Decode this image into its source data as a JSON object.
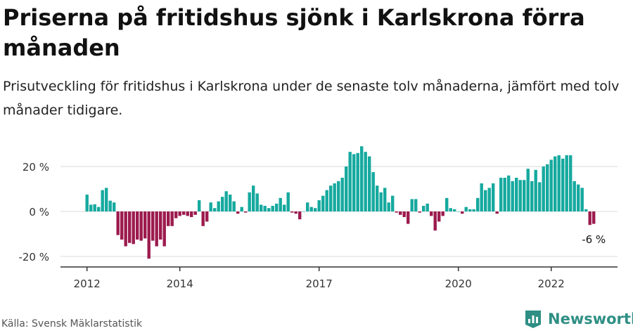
{
  "title": "Priserna på fritidshus sjönk i Karlskrona förra månaden",
  "subtitle": "Prisutveckling för fritidshus i Karlskrona under de senaste tolv månaderna, jämfört med tolv månader tidigare.",
  "source": "Källa: Svensk Mäklarstatistik",
  "brand": {
    "name": "Newsworthy",
    "icon": "newsworthy-logo-icon"
  },
  "colors": {
    "positive": "#16a99f",
    "negative": "#9c1b4e",
    "grid": "#d9d9d9",
    "axis": "#333333"
  },
  "chart_data": {
    "type": "bar",
    "unit": "%",
    "x_ticks": [
      "2012",
      "2014",
      "2017",
      "2020",
      "2022"
    ],
    "y_ticks": [
      "20 %",
      "0 %",
      "-20 %"
    ],
    "ylim": [
      -22,
      30
    ],
    "grid": true,
    "annotation": "-6 %",
    "categories": [
      "2012-01",
      "2012-02",
      "2012-03",
      "2012-04",
      "2012-05",
      "2012-06",
      "2012-07",
      "2012-08",
      "2012-09",
      "2012-10",
      "2012-11",
      "2012-12",
      "2013-01",
      "2013-02",
      "2013-03",
      "2013-04",
      "2013-05",
      "2013-06",
      "2013-07",
      "2013-08",
      "2013-09",
      "2013-10",
      "2013-11",
      "2013-12",
      "2014-01",
      "2014-02",
      "2014-03",
      "2014-04",
      "2014-05",
      "2014-06",
      "2014-07",
      "2014-08",
      "2014-09",
      "2014-10",
      "2014-11",
      "2014-12",
      "2015-01",
      "2015-02",
      "2015-03",
      "2015-04",
      "2015-05",
      "2015-06",
      "2015-07",
      "2015-08",
      "2015-09",
      "2015-10",
      "2015-11",
      "2015-12",
      "2016-01",
      "2016-02",
      "2016-03",
      "2016-04",
      "2016-05",
      "2016-06",
      "2016-07",
      "2016-08",
      "2016-09",
      "2016-10",
      "2016-11",
      "2016-12",
      "2017-01",
      "2017-02",
      "2017-03",
      "2017-04",
      "2017-05",
      "2017-06",
      "2017-07",
      "2017-08",
      "2017-09",
      "2017-10",
      "2017-11",
      "2017-12",
      "2018-01",
      "2018-02",
      "2018-03",
      "2018-04",
      "2018-05",
      "2018-06",
      "2018-07",
      "2018-08",
      "2018-09",
      "2018-10",
      "2018-11",
      "2018-12",
      "2019-01",
      "2019-02",
      "2019-03",
      "2019-04",
      "2019-05",
      "2019-06",
      "2019-07",
      "2019-08",
      "2019-09",
      "2019-10",
      "2019-11",
      "2019-12",
      "2020-01",
      "2020-02",
      "2020-03",
      "2020-04",
      "2020-05",
      "2020-06",
      "2020-07",
      "2020-08",
      "2020-09",
      "2020-10",
      "2020-11",
      "2020-12",
      "2021-01",
      "2021-02",
      "2021-03",
      "2021-04",
      "2021-05",
      "2021-06",
      "2021-07",
      "2021-08",
      "2021-09",
      "2021-10",
      "2021-11",
      "2021-12",
      "2022-01",
      "2022-02",
      "2022-03",
      "2022-04",
      "2022-05",
      "2022-06",
      "2022-07",
      "2022-08",
      "2022-09",
      "2022-10",
      "2022-11",
      "2022-12"
    ],
    "values": [
      7.5,
      3,
      3.2,
      2,
      9.5,
      10.5,
      4.8,
      4,
      -10.5,
      -12.5,
      -15.5,
      -14,
      -14.5,
      -12.5,
      -13,
      -12,
      -21,
      -13,
      -15.5,
      -12.5,
      -15.5,
      -6.5,
      -6.5,
      -3,
      -2,
      -1.5,
      -2,
      -2.5,
      -1.5,
      5,
      -6.5,
      -4.5,
      4,
      1.5,
      4.5,
      6.5,
      9,
      7.5,
      4.5,
      -1,
      2,
      -0.5,
      8.5,
      11.5,
      8,
      3,
      2.5,
      1.5,
      2.5,
      3.5,
      6,
      3,
      8.5,
      -0.5,
      -1,
      -3.5,
      0,
      4,
      2,
      1.5,
      5,
      7,
      9.5,
      11.5,
      12.5,
      13.5,
      15,
      20,
      26.5,
      25.5,
      26,
      29,
      26.5,
      24.5,
      17.5,
      11.5,
      8.5,
      10.5,
      4,
      7,
      -0.5,
      -1.5,
      -2.5,
      -5.5,
      5.5,
      5.5,
      -0.5,
      2.5,
      3.5,
      -2,
      -8.5,
      -4.5,
      -2,
      6,
      1.5,
      1,
      0,
      -1,
      2,
      1,
      1,
      6,
      12.5,
      9.5,
      10.5,
      12.5,
      -1,
      15,
      15,
      16,
      13.5,
      15,
      14,
      14,
      19,
      13.5,
      18.5,
      13,
      20,
      21,
      23,
      24.5,
      25,
      23.5,
      25,
      25,
      13.5,
      12,
      10.5,
      1,
      -6,
      -5.5
    ],
    "last_value": -6
  }
}
